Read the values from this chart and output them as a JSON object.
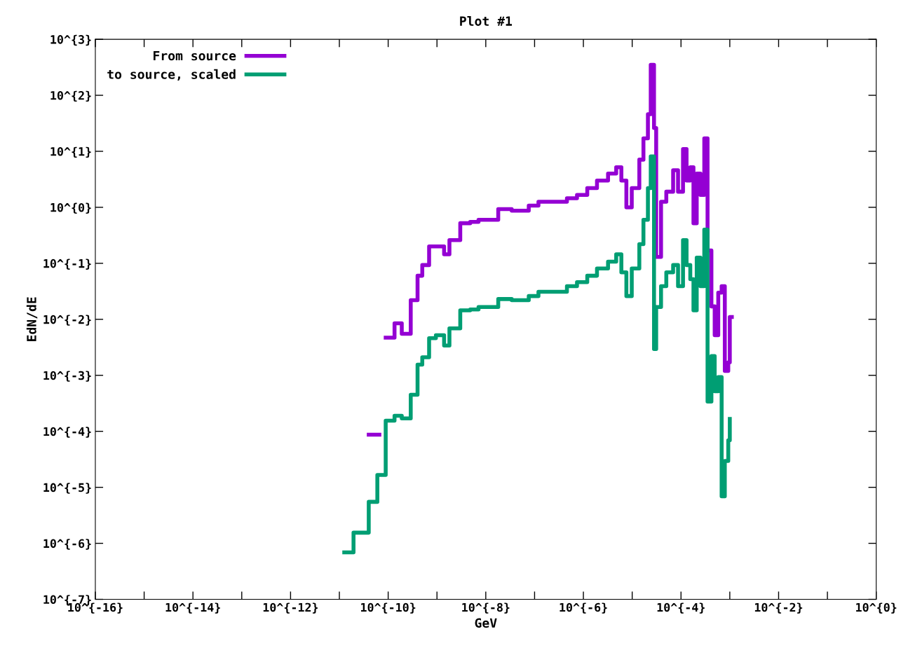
{
  "chart_data": {
    "type": "step",
    "title": "Plot #1",
    "xlabel": "GeV",
    "ylabel": "EdN/dE",
    "log": "xy",
    "grid": false,
    "legend": "top left",
    "line_style": "solid",
    "marker": "none",
    "xlim": [
      1e-16,
      1
    ],
    "ylim": [
      1e-07,
      1000
    ],
    "xticks": [
      {
        "value": 1e-16,
        "label": "10^{-16}"
      },
      {
        "value": 1e-15,
        "label": null
      },
      {
        "value": 1e-14,
        "label": "10^{-14}"
      },
      {
        "value": 1e-13,
        "label": null
      },
      {
        "value": 1e-12,
        "label": "10^{-12}"
      },
      {
        "value": 1e-11,
        "label": null
      },
      {
        "value": 1e-10,
        "label": "10^{-10}"
      },
      {
        "value": 1e-09,
        "label": null
      },
      {
        "value": 1e-08,
        "label": "10^{-8}"
      },
      {
        "value": 1e-07,
        "label": null
      },
      {
        "value": 1e-06,
        "label": "10^{-6}"
      },
      {
        "value": 1e-05,
        "label": null
      },
      {
        "value": 0.0001,
        "label": "10^{-4}"
      },
      {
        "value": 0.001,
        "label": null
      },
      {
        "value": 0.01,
        "label": "10^{-2}"
      },
      {
        "value": 0.1,
        "label": null
      },
      {
        "value": 1,
        "label": "10^{0}"
      }
    ],
    "yticks": [
      {
        "value": 1e-07,
        "label": "10^{-7}"
      },
      {
        "value": 1e-06,
        "label": "10^{-6}"
      },
      {
        "value": 1e-05,
        "label": "10^{-5}"
      },
      {
        "value": 0.0001,
        "label": "10^{-4}"
      },
      {
        "value": 0.001,
        "label": "10^{-3}"
      },
      {
        "value": 0.01,
        "label": "10^{-2}"
      },
      {
        "value": 0.1,
        "label": "10^{-1}"
      },
      {
        "value": 1,
        "label": "10^{0}"
      },
      {
        "value": 10,
        "label": "10^{1}"
      },
      {
        "value": 100,
        "label": "10^{2}"
      },
      {
        "value": 1000,
        "label": "10^{3}"
      }
    ],
    "series": [
      {
        "name": "From source",
        "color": "#9400d3",
        "x": [
          4e-11,
          6.5e-11,
          6.6e-11,
          8.9e-11,
          1.35e-10,
          1.9e-10,
          2.9e-10,
          4e-10,
          5e-10,
          6.9e-10,
          9.5e-10,
          1.4e-09,
          1.8e-09,
          3e-09,
          4.8e-09,
          7.1e-09,
          1.8e-08,
          3.4e-08,
          7.6e-08,
          1.2e-07,
          2.8e-07,
          4.6e-07,
          7.4e-07,
          1.2e-06,
          1.9e-06,
          3.2e-06,
          4.7e-06,
          6e-06,
          7.6e-06,
          9.8e-06,
          1.4e-05,
          1.7e-05,
          2.1e-05,
          2.4e-05,
          2.8e-05,
          3.1e-05,
          3.9e-05,
          5e-05,
          6.9e-05,
          8.7e-05,
          0.00011,
          0.00013,
          0.000155,
          0.00018,
          0.00021,
          0.00025,
          0.0003,
          0.00035,
          0.00042,
          0.00049,
          0.00058,
          0.00068,
          0.00079,
          0.00093,
          0.001,
          0.0011
        ],
        "values": [
          8.7e-05,
          8.7e-05,
          null,
          0.0047,
          0.0085,
          0.0055,
          0.022,
          0.06,
          0.093,
          0.2,
          0.2,
          0.145,
          0.26,
          0.52,
          0.55,
          0.6,
          0.93,
          0.87,
          1.07,
          1.26,
          1.26,
          1.45,
          1.66,
          2.2,
          3.0,
          4.0,
          5.2,
          3.0,
          1.0,
          2.2,
          7.1,
          17,
          46,
          350,
          26,
          0.13,
          1.26,
          1.9,
          4.6,
          1.9,
          11,
          3.0,
          5.2,
          0.52,
          4.0,
          1.66,
          17,
          0.17,
          0.017,
          0.0052,
          0.03,
          0.039,
          0.0012,
          0.0017,
          0.011,
          0.011
        ]
      },
      {
        "name": "to source, scaled",
        "color": "#009e73",
        "x": [
          1.26e-11,
          1.95e-11,
          4e-11,
          6e-11,
          8.9e-11,
          1.35e-10,
          1.9e-10,
          2.9e-10,
          4e-10,
          5e-10,
          6.9e-10,
          9.5e-10,
          1.4e-09,
          1.8e-09,
          3e-09,
          4.8e-09,
          7.1e-09,
          1.8e-08,
          3.4e-08,
          7.6e-08,
          1.2e-07,
          2.8e-07,
          4.6e-07,
          7.4e-07,
          1.2e-06,
          1.9e-06,
          3.2e-06,
          4.7e-06,
          6e-06,
          7.6e-06,
          9.8e-06,
          1.4e-05,
          1.7e-05,
          2.1e-05,
          2.4e-05,
          2.8e-05,
          3.1e-05,
          3.9e-05,
          5e-05,
          6.9e-05,
          8.7e-05,
          0.00011,
          0.00013,
          0.000155,
          0.00018,
          0.00021,
          0.00025,
          0.0003,
          0.00035,
          0.00042,
          0.00049,
          0.00058,
          0.00068,
          0.00079,
          0.00093,
          0.001
        ],
        "values": [
          6.9e-07,
          1.55e-06,
          5.5e-06,
          1.66e-05,
          0.000155,
          0.00019,
          0.00017,
          0.00045,
          0.00155,
          0.0021,
          0.0046,
          0.0052,
          0.0034,
          0.0069,
          0.0145,
          0.015,
          0.0166,
          0.023,
          0.022,
          0.026,
          0.031,
          0.031,
          0.039,
          0.046,
          0.06,
          0.081,
          0.107,
          0.145,
          0.069,
          0.026,
          0.081,
          0.22,
          0.6,
          2.2,
          8.1,
          0.00295,
          0.0166,
          0.039,
          0.069,
          0.093,
          0.039,
          0.26,
          0.093,
          0.052,
          0.0145,
          0.126,
          0.039,
          0.4,
          0.00034,
          0.0022,
          0.00052,
          0.00093,
          6.9e-06,
          2.95e-05,
          6.9e-05,
          0.000166
        ]
      }
    ]
  }
}
